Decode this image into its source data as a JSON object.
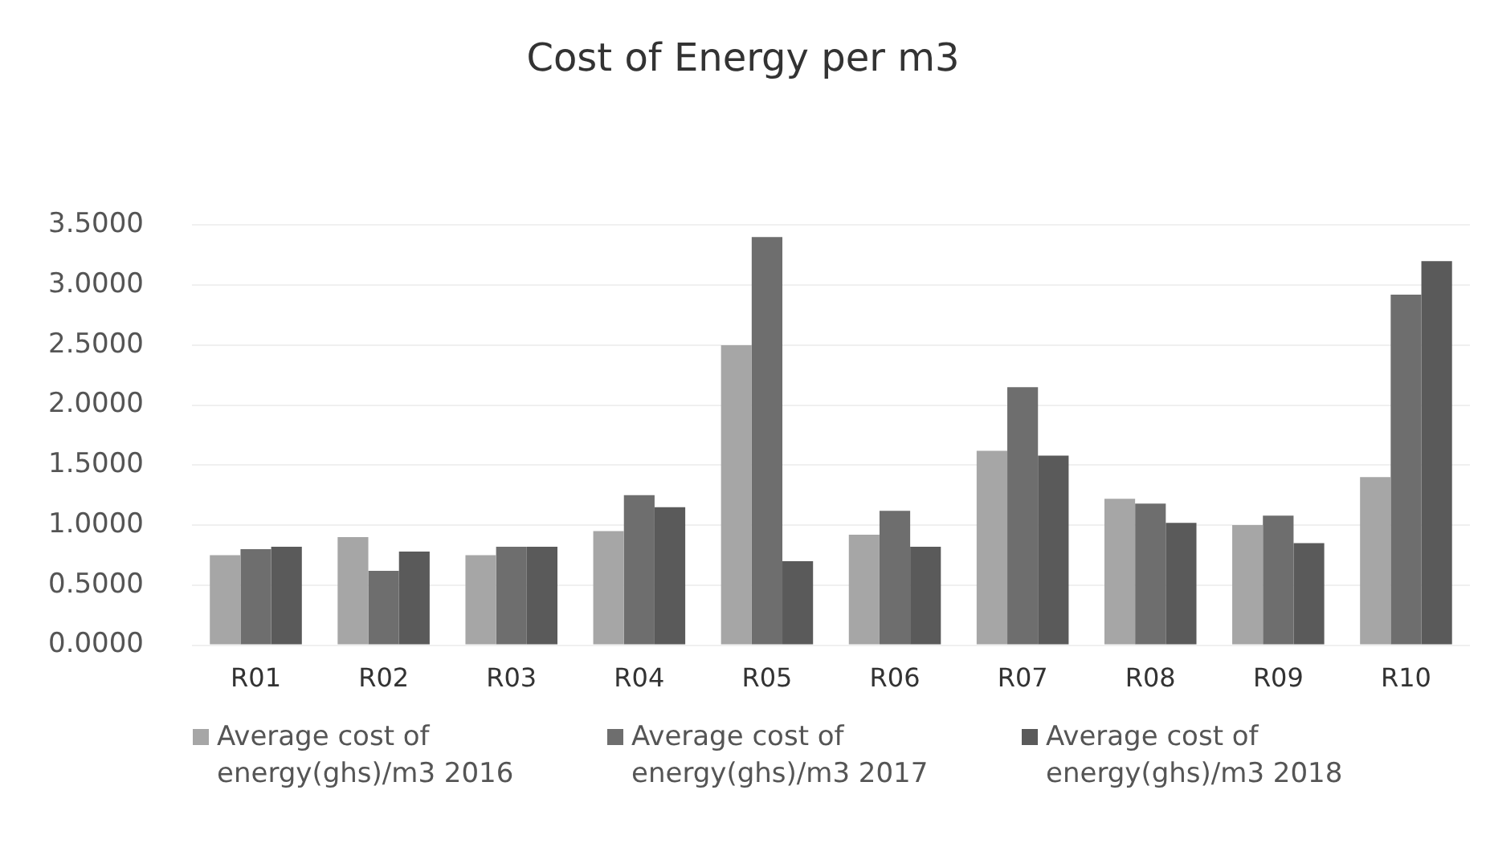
{
  "chart_data": {
    "type": "bar",
    "title": "Cost of Energy per m3",
    "categories": [
      "R01",
      "R02",
      "R03",
      "R04",
      "R05",
      "R06",
      "R07",
      "R08",
      "R09",
      "R10"
    ],
    "series": [
      {
        "name": "Average cost of energy(ghs)/m3 2016",
        "color": "#a6a6a6",
        "values": [
          0.75,
          0.9,
          0.75,
          0.95,
          2.5,
          0.92,
          1.62,
          1.22,
          1.0,
          1.4
        ]
      },
      {
        "name": "Average cost of energy(ghs)/m3 2017",
        "color": "#6e6e6e",
        "values": [
          0.8,
          0.62,
          0.82,
          1.25,
          3.4,
          1.12,
          2.15,
          1.18,
          1.08,
          2.92
        ]
      },
      {
        "name": "Average cost of energy(ghs)/m3 2018",
        "color": "#5a5a5a",
        "values": [
          0.82,
          0.78,
          0.82,
          1.15,
          0.7,
          0.82,
          1.58,
          1.02,
          0.85,
          3.2
        ]
      }
    ],
    "ylim": [
      0,
      3.5
    ],
    "yticks": [
      {
        "value": 0,
        "label": "0.0000"
      },
      {
        "value": 0.5,
        "label": "0.5000"
      },
      {
        "value": 1,
        "label": "1.0000"
      },
      {
        "value": 1.5,
        "label": "1.5000"
      },
      {
        "value": 2,
        "label": "2.0000"
      },
      {
        "value": 2.5,
        "label": "2.5000"
      },
      {
        "value": 3,
        "label": "3.0000"
      },
      {
        "value": 3.5,
        "label": "3.5000"
      }
    ],
    "grid": "y",
    "legend": "bottom"
  }
}
